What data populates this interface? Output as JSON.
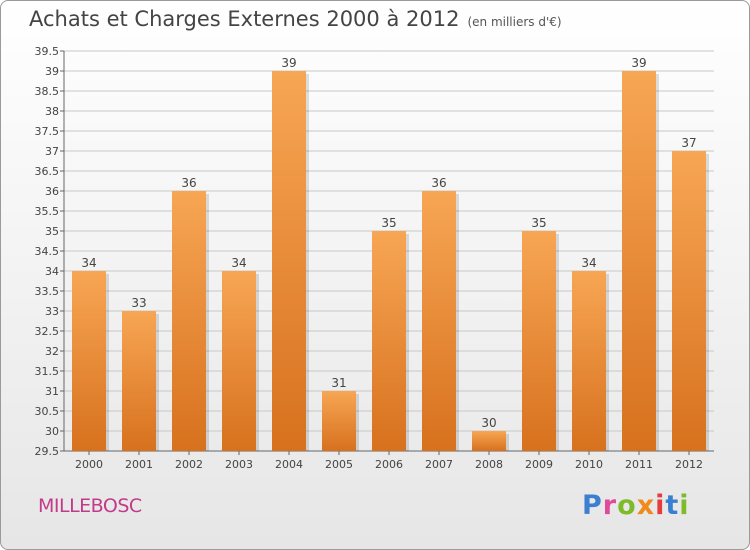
{
  "header": {
    "title": "Achats et Charges Externes 2000 à 2012",
    "unit": "(en milliers d'€)"
  },
  "footer": {
    "commune": "MILLEBOSC",
    "logo": "Proxiti"
  },
  "colors": {
    "bar_top": "#f7a654",
    "bar_bottom": "#d7711e",
    "grid": "#c8c8c8",
    "commune_text": "#c23a8a",
    "logo_letters": [
      "#3a7fd0",
      "#e04a9a",
      "#7dbb2a",
      "#f08a1c",
      "#e53c3c",
      "#3a7fd0",
      "#7dbb2a"
    ]
  },
  "chart_data": {
    "type": "bar",
    "categories": [
      "2000",
      "2001",
      "2002",
      "2003",
      "2004",
      "2005",
      "2006",
      "2007",
      "2008",
      "2009",
      "2010",
      "2011",
      "2012"
    ],
    "values": [
      34,
      33,
      36,
      34,
      39,
      31,
      35,
      36,
      30,
      35,
      34,
      39,
      37
    ],
    "ylim": [
      29.5,
      39.5
    ],
    "yticks": [
      "29.5",
      "30",
      "30.5",
      "31",
      "31.5",
      "32",
      "32.5",
      "33",
      "33.5",
      "34",
      "34.5",
      "35",
      "35.5",
      "36",
      "36.5",
      "37",
      "37.5",
      "38",
      "38.5",
      "39",
      "39.5"
    ],
    "grid": true,
    "data_labels": true
  }
}
